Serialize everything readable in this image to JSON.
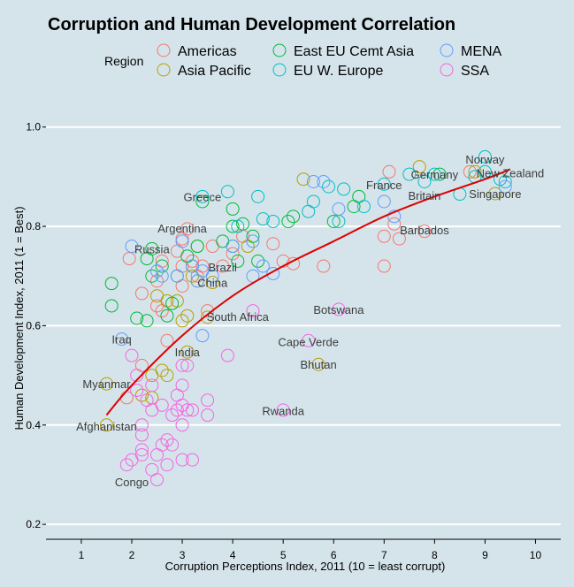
{
  "chart_data": {
    "type": "scatter",
    "title": "Corruption and Human Development Correlation",
    "xlabel": "Corruption Perceptions Index, 2011 (10 = least corrupt)",
    "ylabel": "Human Development Index, 2011 (1 = Best)",
    "xlim": [
      0.3,
      10.5
    ],
    "ylim": [
      0.17,
      1.06
    ],
    "x_ticks": [
      "1",
      "2",
      "3",
      "4",
      "5",
      "6",
      "7",
      "8",
      "9",
      "10"
    ],
    "y_ticks": [
      "0.2",
      "0.4",
      "0.6",
      "0.8",
      "1.0"
    ],
    "grid": "horizontal",
    "legend": {
      "title": "Region",
      "position": "top",
      "entries": [
        {
          "name": "Americas",
          "color": "#f8766d"
        },
        {
          "name": "Asia Pacific",
          "color": "#b79f00"
        },
        {
          "name": "East EU Cemt Asia",
          "color": "#00ba38"
        },
        {
          "name": "EU W. Europe",
          "color": "#00bfc4"
        },
        {
          "name": "MENA",
          "color": "#619cff"
        },
        {
          "name": "SSA",
          "color": "#f564e3"
        }
      ]
    },
    "trend": {
      "color": "#dd0000",
      "points": [
        [
          1.5,
          0.42
        ],
        [
          2.0,
          0.48
        ],
        [
          3.0,
          0.58
        ],
        [
          4.0,
          0.66
        ],
        [
          5.0,
          0.72
        ],
        [
          6.0,
          0.77
        ],
        [
          7.0,
          0.82
        ],
        [
          8.0,
          0.86
        ],
        [
          9.0,
          0.895
        ],
        [
          9.5,
          0.915
        ]
      ]
    },
    "point_labels": [
      {
        "text": "Norway",
        "x": 9.0,
        "y": 0.935
      },
      {
        "text": "Germany",
        "x": 8.0,
        "y": 0.905
      },
      {
        "text": "New Zealand",
        "x": 9.5,
        "y": 0.908
      },
      {
        "text": "France",
        "x": 7.0,
        "y": 0.884
      },
      {
        "text": "Britain",
        "x": 7.8,
        "y": 0.862
      },
      {
        "text": "Singapore",
        "x": 9.2,
        "y": 0.866
      },
      {
        "text": "Greece",
        "x": 3.4,
        "y": 0.86
      },
      {
        "text": "Argentina",
        "x": 3.0,
        "y": 0.797
      },
      {
        "text": "Barbados",
        "x": 7.8,
        "y": 0.793
      },
      {
        "text": "Russia",
        "x": 2.4,
        "y": 0.755
      },
      {
        "text": "Brazil",
        "x": 3.8,
        "y": 0.718
      },
      {
        "text": "China",
        "x": 3.6,
        "y": 0.687
      },
      {
        "text": "Botswana",
        "x": 6.1,
        "y": 0.633
      },
      {
        "text": "South Africa",
        "x": 4.1,
        "y": 0.619
      },
      {
        "text": "Iraq",
        "x": 1.8,
        "y": 0.573
      },
      {
        "text": "Cape Verde",
        "x": 5.5,
        "y": 0.568
      },
      {
        "text": "India",
        "x": 3.1,
        "y": 0.547
      },
      {
        "text": "Bhutan",
        "x": 5.7,
        "y": 0.522
      },
      {
        "text": "Myanmar",
        "x": 1.5,
        "y": 0.483
      },
      {
        "text": "Rwanda",
        "x": 5.0,
        "y": 0.429
      },
      {
        "text": "Afghanistan",
        "x": 1.5,
        "y": 0.398
      },
      {
        "text": "Congo",
        "x": 2.0,
        "y": 0.286
      }
    ],
    "series": [
      {
        "name": "Americas",
        "color": "#f8766d",
        "points": [
          [
            1.9,
            0.455
          ],
          [
            2.2,
            0.52
          ],
          [
            2.2,
            0.665
          ],
          [
            2.5,
            0.64
          ],
          [
            2.5,
            0.69
          ],
          [
            2.6,
            0.63
          ],
          [
            2.6,
            0.73
          ],
          [
            2.7,
            0.57
          ],
          [
            2.9,
            0.75
          ],
          [
            3.0,
            0.68
          ],
          [
            3.0,
            0.775
          ],
          [
            3.0,
            0.72
          ],
          [
            3.1,
            0.795
          ],
          [
            3.2,
            0.73
          ],
          [
            3.3,
            0.7
          ],
          [
            3.4,
            0.72
          ],
          [
            3.5,
            0.63
          ],
          [
            3.6,
            0.76
          ],
          [
            3.8,
            0.72
          ],
          [
            4.0,
            0.745
          ],
          [
            4.2,
            0.78
          ],
          [
            4.8,
            0.765
          ],
          [
            5.0,
            0.73
          ],
          [
            5.2,
            0.725
          ],
          [
            5.8,
            0.72
          ],
          [
            7.0,
            0.78
          ],
          [
            7.0,
            0.72
          ],
          [
            7.1,
            0.91
          ],
          [
            7.2,
            0.805
          ],
          [
            7.3,
            0.775
          ],
          [
            7.8,
            0.79
          ],
          [
            8.7,
            0.91
          ],
          [
            1.95,
            0.735
          ]
        ]
      },
      {
        "name": "Asia Pacific",
        "color": "#b79f00",
        "points": [
          [
            1.5,
            0.4
          ],
          [
            1.5,
            0.483
          ],
          [
            2.2,
            0.46
          ],
          [
            2.4,
            0.455
          ],
          [
            2.4,
            0.5
          ],
          [
            2.5,
            0.66
          ],
          [
            2.6,
            0.51
          ],
          [
            2.7,
            0.5
          ],
          [
            2.7,
            0.65
          ],
          [
            2.9,
            0.65
          ],
          [
            3.0,
            0.61
          ],
          [
            3.1,
            0.62
          ],
          [
            3.2,
            0.7
          ],
          [
            3.3,
            0.69
          ],
          [
            3.3,
            0.76
          ],
          [
            3.5,
            0.617
          ],
          [
            3.1,
            0.547
          ],
          [
            3.6,
            0.687
          ],
          [
            4.3,
            0.76
          ],
          [
            5.4,
            0.895
          ],
          [
            5.7,
            0.522
          ],
          [
            7.7,
            0.92
          ],
          [
            9.2,
            0.866
          ],
          [
            8.8,
            0.91
          ]
        ]
      },
      {
        "name": "East EU Cemt Asia",
        "color": "#00ba38",
        "points": [
          [
            1.6,
            0.685
          ],
          [
            1.6,
            0.64
          ],
          [
            2.1,
            0.615
          ],
          [
            2.3,
            0.735
          ],
          [
            2.3,
            0.61
          ],
          [
            2.4,
            0.7
          ],
          [
            2.4,
            0.755
          ],
          [
            2.6,
            0.72
          ],
          [
            2.8,
            0.645
          ],
          [
            2.9,
            0.7
          ],
          [
            3.1,
            0.74
          ],
          [
            3.2,
            0.72
          ],
          [
            3.3,
            0.76
          ],
          [
            3.4,
            0.85
          ],
          [
            4.0,
            0.76
          ],
          [
            4.0,
            0.8
          ],
          [
            4.0,
            0.835
          ],
          [
            4.1,
            0.73
          ],
          [
            4.2,
            0.805
          ],
          [
            4.4,
            0.78
          ],
          [
            4.5,
            0.73
          ],
          [
            5.1,
            0.81
          ],
          [
            5.2,
            0.82
          ],
          [
            6.0,
            0.81
          ],
          [
            6.4,
            0.84
          ],
          [
            6.5,
            0.86
          ],
          [
            8.1,
            0.905
          ],
          [
            2.7,
            0.62
          ],
          [
            3.8,
            0.77
          ]
        ]
      },
      {
        "name": "EU W. Europe",
        "color": "#00bfc4",
        "points": [
          [
            3.4,
            0.86
          ],
          [
            3.9,
            0.87
          ],
          [
            4.1,
            0.8
          ],
          [
            4.5,
            0.86
          ],
          [
            4.6,
            0.815
          ],
          [
            4.8,
            0.81
          ],
          [
            5.5,
            0.83
          ],
          [
            5.6,
            0.85
          ],
          [
            5.9,
            0.88
          ],
          [
            6.2,
            0.875
          ],
          [
            6.1,
            0.81
          ],
          [
            6.6,
            0.84
          ],
          [
            7.0,
            0.885
          ],
          [
            7.5,
            0.905
          ],
          [
            7.8,
            0.89
          ],
          [
            8.0,
            0.905
          ],
          [
            8.5,
            0.865
          ],
          [
            8.8,
            0.9
          ],
          [
            9.0,
            0.94
          ],
          [
            9.3,
            0.895
          ],
          [
            9.4,
            0.89
          ],
          [
            9.0,
            0.91
          ]
        ]
      },
      {
        "name": "MENA",
        "color": "#619cff",
        "points": [
          [
            1.8,
            0.573
          ],
          [
            2.0,
            0.76
          ],
          [
            2.5,
            0.71
          ],
          [
            2.6,
            0.7
          ],
          [
            2.9,
            0.7
          ],
          [
            3.0,
            0.77
          ],
          [
            3.2,
            0.72
          ],
          [
            3.3,
            0.69
          ],
          [
            3.4,
            0.58
          ],
          [
            3.4,
            0.71
          ],
          [
            3.6,
            0.7
          ],
          [
            4.0,
            0.76
          ],
          [
            4.4,
            0.7
          ],
          [
            4.4,
            0.77
          ],
          [
            4.8,
            0.705
          ],
          [
            5.6,
            0.89
          ],
          [
            5.8,
            0.89
          ],
          [
            6.1,
            0.835
          ],
          [
            7.0,
            0.85
          ],
          [
            7.2,
            0.82
          ],
          [
            4.6,
            0.72
          ],
          [
            9.4,
            0.88
          ]
        ]
      },
      {
        "name": "SSA",
        "color": "#f564e3",
        "points": [
          [
            1.9,
            0.32
          ],
          [
            2.0,
            0.54
          ],
          [
            2.0,
            0.33
          ],
          [
            2.1,
            0.47
          ],
          [
            2.2,
            0.34
          ],
          [
            2.2,
            0.38
          ],
          [
            2.2,
            0.35
          ],
          [
            2.2,
            0.4
          ],
          [
            2.3,
            0.45
          ],
          [
            2.4,
            0.31
          ],
          [
            2.4,
            0.43
          ],
          [
            2.4,
            0.48
          ],
          [
            2.5,
            0.29
          ],
          [
            2.5,
            0.34
          ],
          [
            2.6,
            0.36
          ],
          [
            2.6,
            0.44
          ],
          [
            2.7,
            0.32
          ],
          [
            2.7,
            0.37
          ],
          [
            2.8,
            0.36
          ],
          [
            2.8,
            0.42
          ],
          [
            2.9,
            0.46
          ],
          [
            2.9,
            0.43
          ],
          [
            3.0,
            0.48
          ],
          [
            3.0,
            0.52
          ],
          [
            3.0,
            0.4
          ],
          [
            3.0,
            0.33
          ],
          [
            3.0,
            0.44
          ],
          [
            3.1,
            0.52
          ],
          [
            3.1,
            0.43
          ],
          [
            3.2,
            0.33
          ],
          [
            3.2,
            0.43
          ],
          [
            3.5,
            0.45
          ],
          [
            3.5,
            0.42
          ],
          [
            3.9,
            0.54
          ],
          [
            4.4,
            0.63
          ],
          [
            5.0,
            0.43
          ],
          [
            5.5,
            0.57
          ],
          [
            6.1,
            0.633
          ],
          [
            2.1,
            0.5
          ]
        ]
      }
    ]
  }
}
